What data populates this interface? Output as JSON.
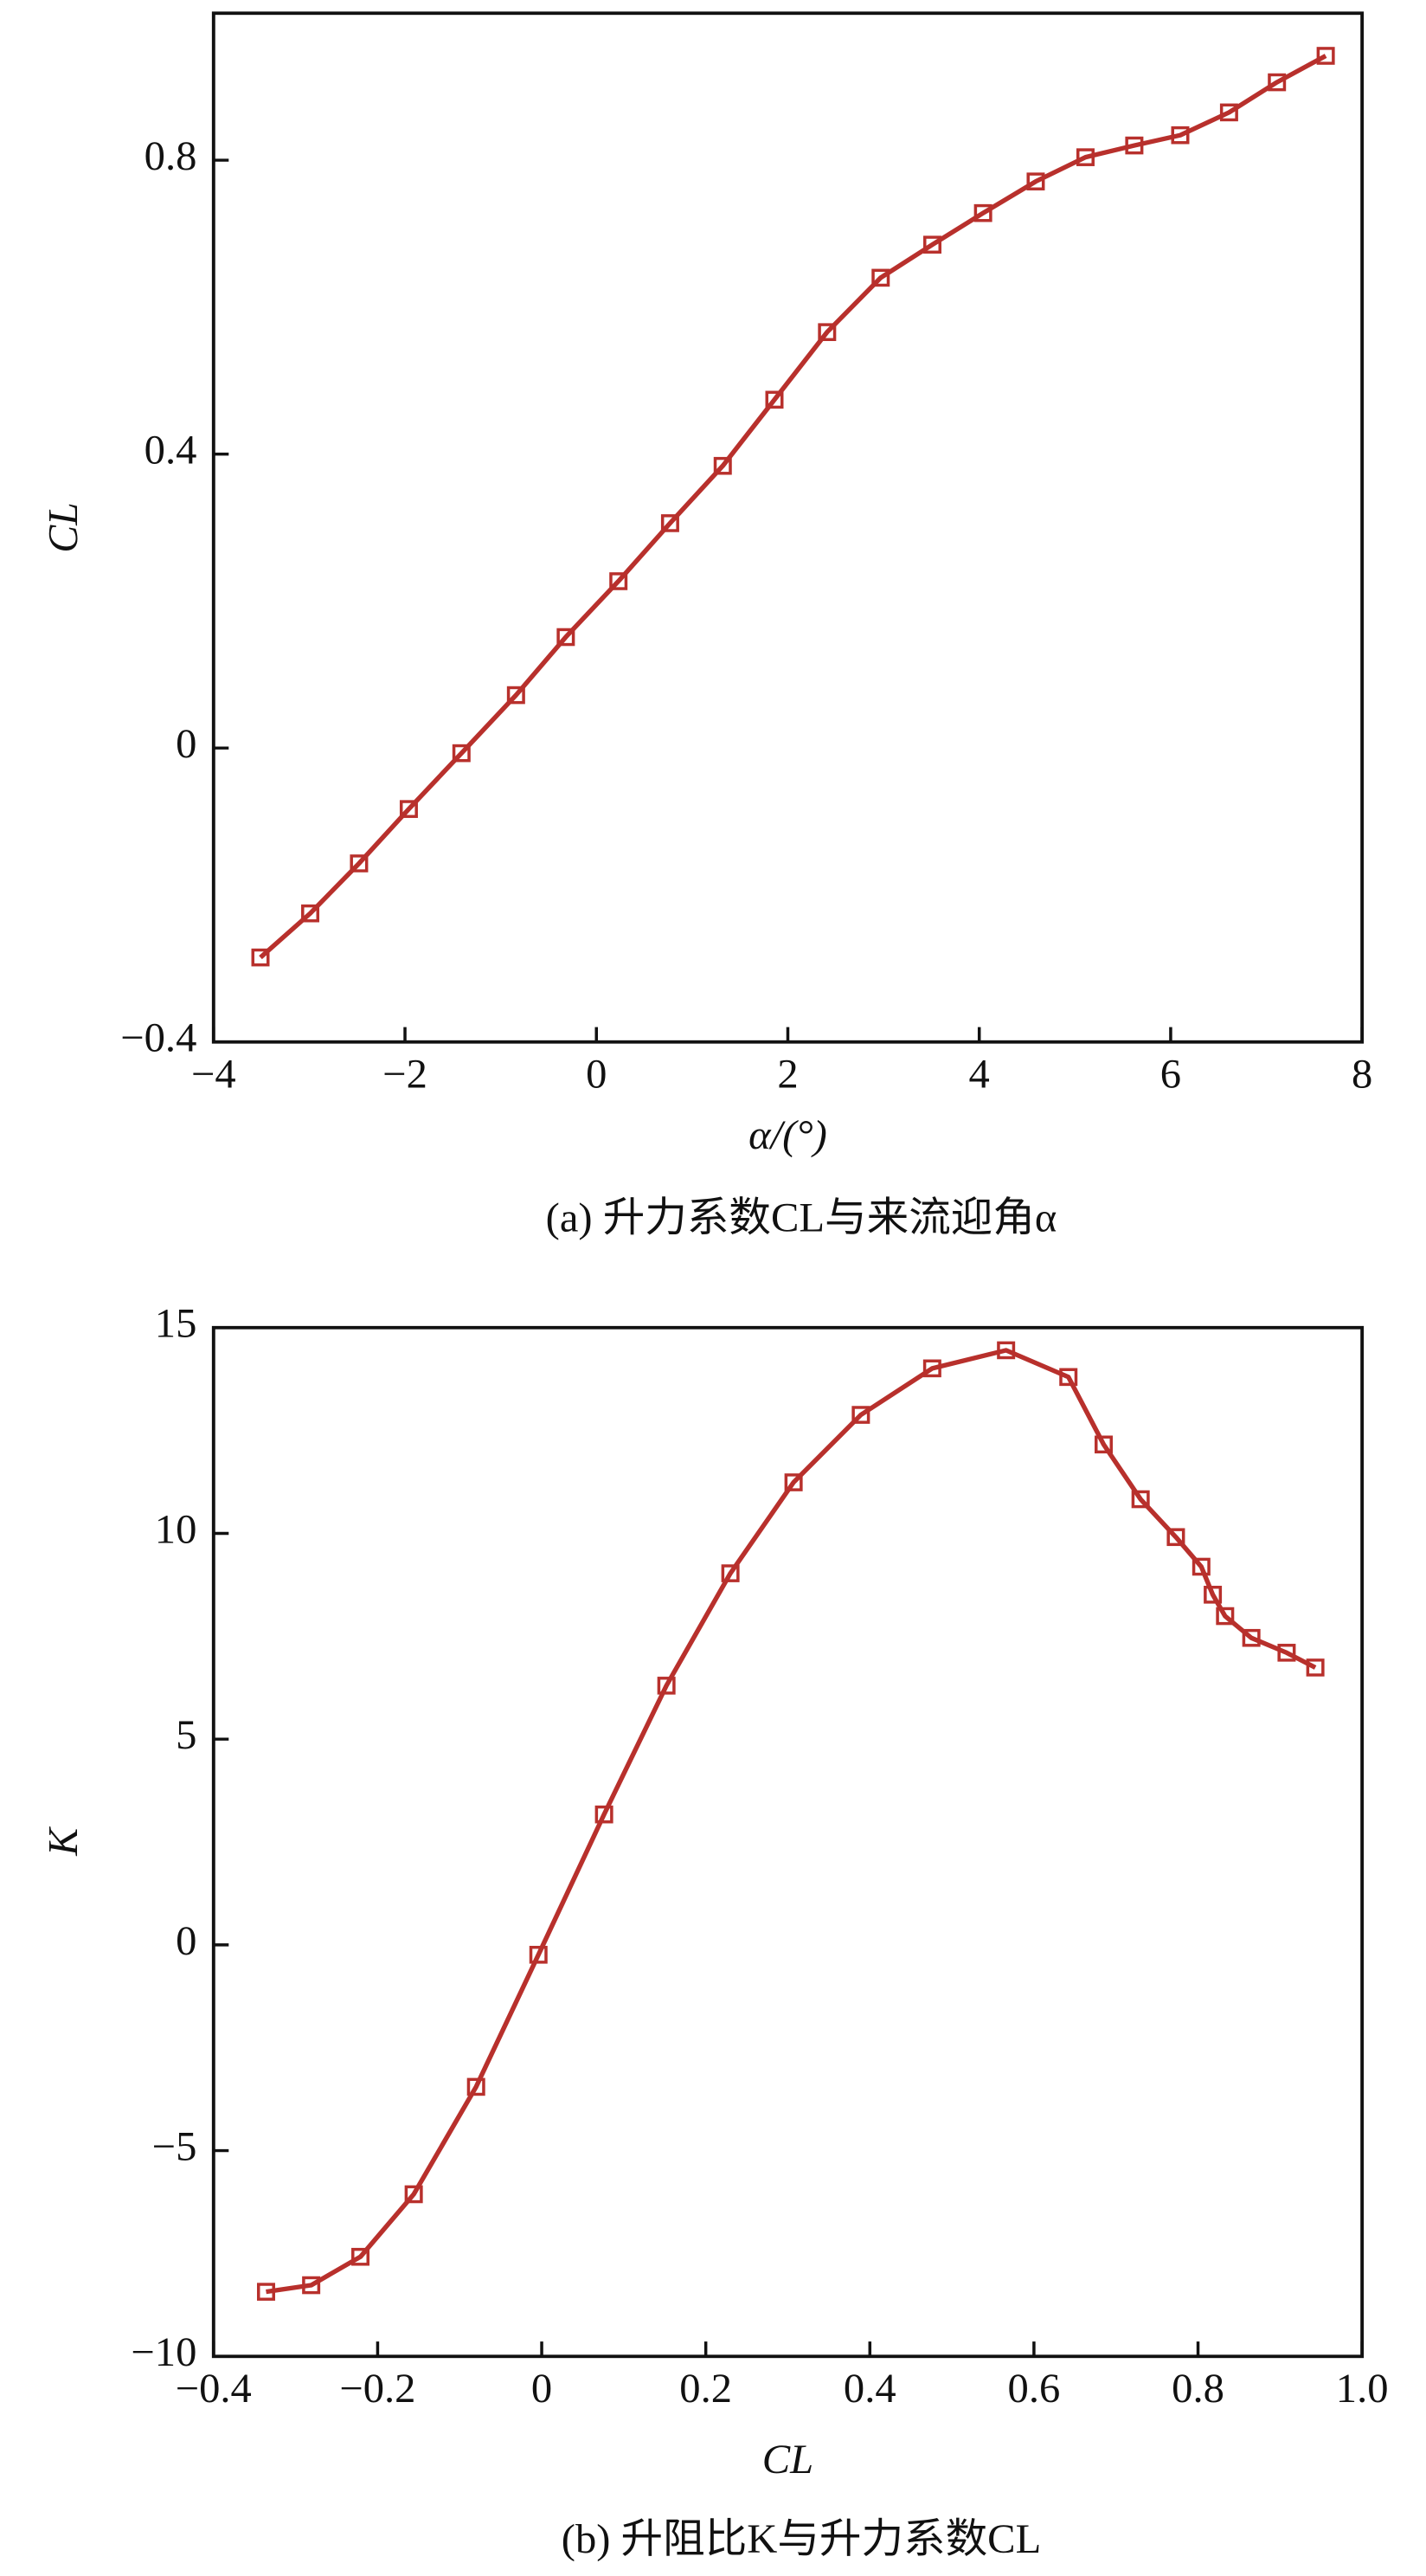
{
  "chart_data": [
    {
      "type": "line",
      "xlabel": "α/(°)",
      "ylabel": "CL",
      "caption": "(a) 升力系数CL与来流迎角α",
      "xlim": [
        -4,
        8
      ],
      "ylim": [
        -0.4,
        1.0
      ],
      "xticks": [
        {
          "value": -4,
          "label": "−4"
        },
        {
          "value": -2,
          "label": "−2"
        },
        0,
        2,
        4,
        6,
        8
      ],
      "yticks": [
        {
          "value": -0.4,
          "label": "−0.4"
        },
        0,
        0.4,
        0.8
      ],
      "x": [
        -3.51,
        -2.99,
        -2.48,
        -1.96,
        -1.41,
        -0.84,
        -0.32,
        0.23,
        0.77,
        1.32,
        1.86,
        2.41,
        2.97,
        3.51,
        4.04,
        4.59,
        5.11,
        5.62,
        6.1,
        6.61,
        7.11,
        7.62
      ],
      "series": [
        {
          "color": "#b8302c",
          "values": [
            -0.285,
            -0.225,
            -0.157,
            -0.083,
            -0.007,
            0.072,
            0.151,
            0.227,
            0.306,
            0.384,
            0.474,
            0.566,
            0.64,
            0.685,
            0.728,
            0.771,
            0.804,
            0.82,
            0.834,
            0.865,
            0.906,
            0.942
          ]
        }
      ]
    },
    {
      "type": "line",
      "xlabel": "CL",
      "ylabel": "K",
      "caption": "(b) 升阻比K与升力系数CL",
      "xlim": [
        -0.4,
        1.0
      ],
      "ylim": [
        -10,
        15
      ],
      "xticks": [
        {
          "value": -0.4,
          "label": "−0.4"
        },
        {
          "value": -0.2,
          "label": "−0.2"
        },
        0,
        0.2,
        0.4,
        0.6,
        0.8,
        {
          "value": 1.0,
          "label": "1.0"
        }
      ],
      "yticks": [
        {
          "value": -10,
          "label": "−10"
        },
        {
          "value": -5,
          "label": "−5"
        },
        0,
        5,
        10,
        15
      ],
      "x": [
        -0.336,
        -0.281,
        -0.221,
        -0.156,
        -0.08,
        -0.004,
        0.076,
        0.152,
        0.23,
        0.307,
        0.389,
        0.476,
        0.566,
        0.642,
        0.685,
        0.73,
        0.773,
        0.804,
        0.818,
        0.833,
        0.865,
        0.908,
        0.943
      ],
      "series": [
        {
          "color": "#b8302c",
          "values": [
            -8.43,
            -8.27,
            -7.58,
            -6.06,
            -3.45,
            -0.24,
            3.17,
            6.3,
            9.03,
            11.24,
            12.88,
            14.01,
            14.45,
            13.8,
            12.16,
            10.83,
            9.91,
            9.19,
            8.51,
            7.99,
            7.46,
            7.1,
            6.74
          ]
        }
      ]
    }
  ]
}
